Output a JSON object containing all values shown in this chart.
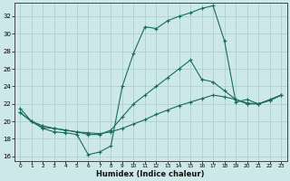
{
  "xlabel": "Humidex (Indice chaleur)",
  "bg_color": "#cce8e8",
  "grid_color": "#aacaca",
  "line_color": "#1a6b5a",
  "xlim": [
    -0.5,
    23.5
  ],
  "ylim": [
    15.5,
    33.5
  ],
  "xticks": [
    0,
    1,
    2,
    3,
    4,
    5,
    6,
    7,
    8,
    9,
    10,
    11,
    12,
    13,
    14,
    15,
    16,
    17,
    18,
    19,
    20,
    21,
    22,
    23
  ],
  "yticks": [
    16,
    18,
    20,
    22,
    24,
    26,
    28,
    30,
    32
  ],
  "line1_x": [
    0,
    1,
    2,
    3,
    4,
    5,
    6,
    7,
    8,
    9,
    10,
    11,
    12,
    13,
    14,
    15,
    16,
    17,
    18,
    19,
    20,
    21,
    22,
    23
  ],
  "line1_y": [
    21.5,
    20.0,
    19.2,
    18.8,
    18.7,
    18.5,
    16.2,
    16.5,
    17.2,
    24.0,
    27.8,
    30.8,
    30.6,
    31.5,
    32.0,
    32.4,
    32.9,
    33.2,
    29.2,
    22.2,
    22.5,
    22.0,
    22.4,
    23.0
  ],
  "line2_x": [
    0,
    1,
    2,
    3,
    4,
    5,
    6,
    7,
    8,
    9,
    10,
    11,
    12,
    13,
    14,
    15,
    16,
    17,
    18,
    19,
    20,
    21,
    22,
    23
  ],
  "line2_y": [
    21.0,
    20.0,
    19.5,
    19.2,
    19.0,
    18.8,
    18.5,
    18.5,
    19.0,
    20.5,
    22.0,
    23.0,
    24.0,
    25.0,
    26.0,
    27.0,
    24.8,
    24.5,
    23.5,
    22.5,
    22.0,
    22.0,
    22.5,
    23.0
  ],
  "line3_x": [
    0,
    1,
    2,
    3,
    4,
    5,
    6,
    7,
    8,
    9,
    10,
    11,
    12,
    13,
    14,
    15,
    16,
    17,
    18,
    19,
    20,
    21,
    22,
    23
  ],
  "line3_y": [
    21.0,
    20.0,
    19.3,
    19.2,
    19.0,
    18.8,
    18.7,
    18.6,
    18.8,
    19.2,
    19.7,
    20.2,
    20.8,
    21.3,
    21.8,
    22.2,
    22.6,
    23.0,
    22.8,
    22.5,
    22.1,
    22.0,
    22.4,
    23.0
  ]
}
